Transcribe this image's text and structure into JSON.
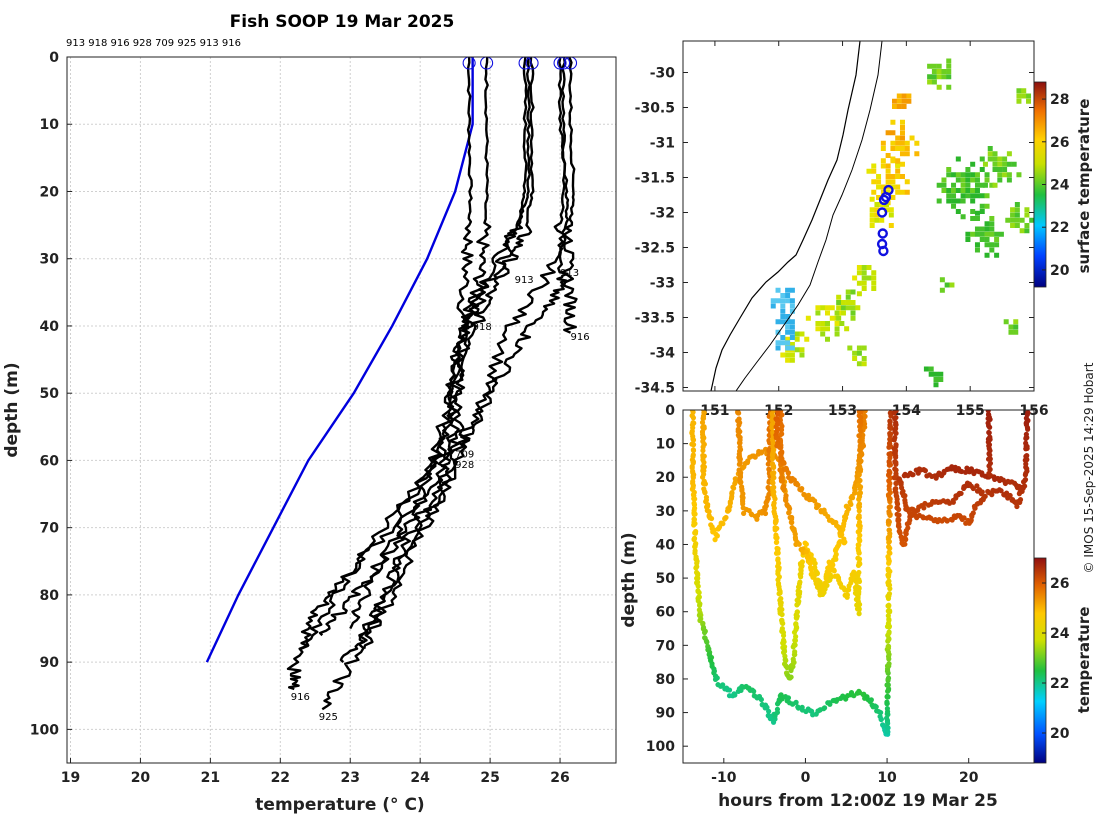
{
  "chart_data": [
    {
      "type": "line",
      "title": "Fish SOOP 19 Mar 2025",
      "subtitle": "913 918 916 928 709 925 913 916",
      "xlabel": "temperature (° C)",
      "ylabel": "depth (m)",
      "xlim": [
        18.95,
        26.8
      ],
      "ylim": [
        105,
        0
      ],
      "xticks": [
        19,
        20,
        21,
        22,
        23,
        24,
        25,
        26
      ],
      "yticks": [
        0,
        10,
        20,
        30,
        40,
        50,
        60,
        70,
        80,
        90,
        100
      ],
      "climatology": {
        "name": "climatology",
        "color": "#0000dd",
        "points": [
          [
            24.75,
            0
          ],
          [
            24.75,
            10
          ],
          [
            24.5,
            20
          ],
          [
            24.1,
            30
          ],
          [
            23.6,
            40
          ],
          [
            23.05,
            50
          ],
          [
            22.4,
            60
          ],
          [
            21.9,
            70
          ],
          [
            21.4,
            80
          ],
          [
            20.95,
            90
          ]
        ]
      },
      "profile_color": "#000000",
      "profiles": [
        {
          "label": "913",
          "points": [
            [
              24.7,
              0
            ],
            [
              24.7,
              10
            ],
            [
              24.72,
              20
            ],
            [
              24.7,
              26
            ],
            [
              24.65,
              32
            ],
            [
              24.6,
              40
            ],
            [
              24.5,
              45
            ],
            [
              24.45,
              50
            ],
            [
              24.2,
              60
            ],
            [
              23.6,
              70
            ],
            [
              22.9,
              78
            ],
            [
              22.5,
              83
            ],
            [
              22.3,
              88
            ]
          ]
        },
        {
          "label": "918",
          "points": [
            [
              24.95,
              0
            ],
            [
              24.95,
              10
            ],
            [
              24.95,
              20
            ],
            [
              24.9,
              27
            ],
            [
              24.85,
              33
            ],
            [
              24.7,
              38
            ],
            [
              24.6,
              42
            ],
            [
              24.45,
              50
            ],
            [
              24.35,
              58
            ],
            [
              24.0,
              65
            ],
            [
              23.6,
              72
            ],
            [
              23.2,
              80
            ],
            [
              23.0,
              85
            ]
          ]
        },
        {
          "label": "916",
          "points": [
            [
              25.5,
              0
            ],
            [
              25.5,
              10
            ],
            [
              25.5,
              20
            ],
            [
              25.4,
              25
            ],
            [
              25.2,
              30
            ],
            [
              24.9,
              35
            ],
            [
              24.7,
              40
            ],
            [
              24.5,
              48
            ],
            [
              24.4,
              55
            ],
            [
              24.1,
              62
            ],
            [
              23.5,
              70
            ],
            [
              22.9,
              78
            ],
            [
              22.5,
              85
            ],
            [
              22.2,
              91
            ],
            [
              22.2,
              94
            ]
          ]
        },
        {
          "label": "928",
          "points": [
            [
              25.6,
              0
            ],
            [
              25.6,
              10
            ],
            [
              25.6,
              20
            ],
            [
              25.5,
              26
            ],
            [
              25.3,
              30
            ],
            [
              25.0,
              35
            ],
            [
              24.8,
              40
            ],
            [
              24.6,
              48
            ],
            [
              24.55,
              55
            ],
            [
              24.4,
              60
            ],
            [
              24.2,
              65
            ],
            [
              23.8,
              72
            ],
            [
              23.5,
              80
            ],
            [
              23.2,
              86
            ],
            [
              22.9,
              90
            ]
          ]
        },
        {
          "label": "709",
          "points": [
            [
              25.55,
              0
            ],
            [
              25.55,
              10
            ],
            [
              25.55,
              20
            ],
            [
              25.4,
              25
            ],
            [
              25.1,
              30
            ],
            [
              24.8,
              36
            ],
            [
              24.6,
              42
            ],
            [
              24.5,
              50
            ],
            [
              24.45,
              58
            ],
            [
              24.2,
              64
            ],
            [
              23.8,
              70
            ],
            [
              23.3,
              77
            ],
            [
              22.9,
              82
            ],
            [
              22.6,
              86
            ]
          ]
        },
        {
          "label": "925",
          "points": [
            [
              26.05,
              0
            ],
            [
              26.05,
              10
            ],
            [
              26.05,
              20
            ],
            [
              26.0,
              27
            ],
            [
              25.8,
              33
            ],
            [
              25.3,
              40
            ],
            [
              25.0,
              48
            ],
            [
              24.7,
              55
            ],
            [
              24.4,
              62
            ],
            [
              24.0,
              70
            ],
            [
              23.6,
              78
            ],
            [
              23.3,
              85
            ],
            [
              22.9,
              92
            ],
            [
              22.6,
              97
            ]
          ]
        },
        {
          "label": "913",
          "points": [
            [
              26.0,
              0
            ],
            [
              26.0,
              10
            ],
            [
              26.1,
              20
            ],
            [
              26.1,
              25
            ],
            [
              26.05,
              32
            ],
            [
              25.95,
              35
            ],
            [
              25.6,
              40
            ],
            [
              25.3,
              45
            ],
            [
              24.9,
              52
            ],
            [
              24.6,
              58
            ],
            [
              24.3,
              66
            ],
            [
              23.8,
              75
            ],
            [
              23.5,
              82
            ],
            [
              23.2,
              88
            ]
          ]
        },
        {
          "label": "916",
          "points": [
            [
              26.15,
              0
            ],
            [
              26.15,
              10
            ],
            [
              26.2,
              20
            ],
            [
              26.15,
              25
            ],
            [
              26.1,
              30
            ],
            [
              26.15,
              36
            ],
            [
              26.15,
              41
            ]
          ]
        }
      ],
      "profile_labels": [
        {
          "text": "913",
          "t": 25.35,
          "d": 33
        },
        {
          "text": "913",
          "t": 26.0,
          "d": 32
        },
        {
          "text": "918",
          "t": 24.75,
          "d": 40
        },
        {
          "text": "916",
          "t": 26.15,
          "d": 41.5
        },
        {
          "text": "709",
          "t": 24.5,
          "d": 59
        },
        {
          "text": "928",
          "t": 24.5,
          "d": 60.5
        },
        {
          "text": "916",
          "t": 22.15,
          "d": 95
        },
        {
          "text": "925",
          "t": 22.55,
          "d": 98
        }
      ],
      "surface_markers_temperature": [
        24.7,
        24.95,
        25.5,
        25.6,
        26.0,
        26.05,
        26.15
      ]
    },
    {
      "type": "heatmap",
      "title": "",
      "xlabel": "",
      "ylabel": "",
      "xlim": [
        150.5,
        156.0
      ],
      "ylim": [
        -34.55,
        -29.55
      ],
      "xticks": [
        151,
        152,
        153,
        154,
        155,
        156
      ],
      "xtick_labels": [
        "151",
        "152",
        "153",
        "154",
        "155",
        "156"
      ],
      "yticks": [
        -30,
        -30.5,
        -31,
        -31.5,
        -32,
        -32.5,
        -33,
        -33.5,
        -34,
        -34.5
      ],
      "colorbar": {
        "label": "surface temperature",
        "range": [
          19.2,
          28.8
        ],
        "ticks": [
          20,
          22,
          24,
          26,
          28
        ]
      },
      "drop_locations": [
        [
          153.72,
          -31.68
        ],
        [
          153.68,
          -31.78
        ],
        [
          153.65,
          -31.82
        ],
        [
          153.62,
          -32.0
        ],
        [
          153.63,
          -32.3
        ],
        [
          153.62,
          -32.45
        ],
        [
          153.64,
          -32.55
        ]
      ]
    },
    {
      "type": "scatter",
      "title": "",
      "xlabel": "hours from 12:00Z 19 Mar 25",
      "ylabel": "depth (m)",
      "xlim": [
        -15,
        28
      ],
      "ylim": [
        105,
        0
      ],
      "xticks": [
        -10,
        0,
        10,
        20
      ],
      "yticks": [
        0,
        10,
        20,
        30,
        40,
        50,
        60,
        70,
        80,
        90,
        100
      ],
      "colorbar": {
        "label": "temperature",
        "range": [
          18.8,
          27.0
        ],
        "ticks": [
          20,
          22,
          24,
          26
        ]
      }
    }
  ],
  "credit": "© IMOS 15-Sep-2025 14:29 Hobart",
  "colors": {
    "climatology": "#0000dd",
    "marker": "#1010e0",
    "coast": "#000000"
  }
}
